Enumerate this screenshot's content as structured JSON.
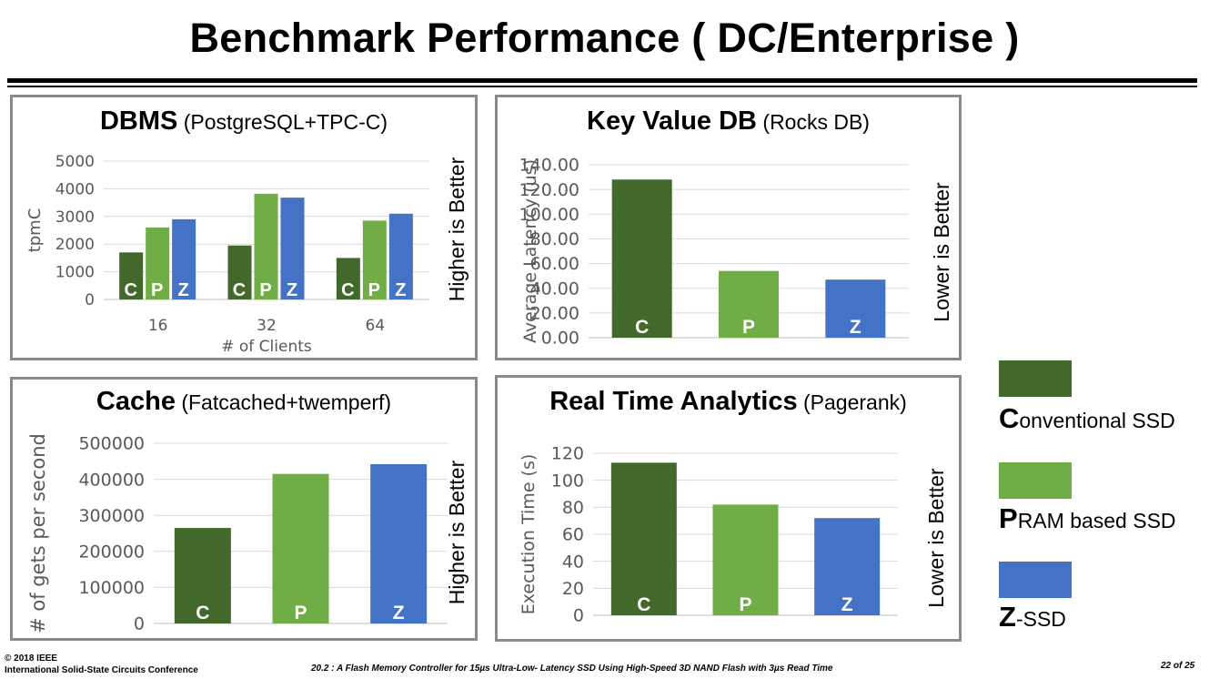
{
  "slide": {
    "title": "Benchmark Performance ( DC/Enterprise )",
    "footer_left_1": "© 2018 IEEE",
    "footer_left_2": "International Solid-State Circuits Conference",
    "footer_center": "20.2 : A Flash Memory Controller for 15µs Ultra-Low- Latency SSD Using High-Speed 3D NAND Flash with 3µs Read Time",
    "footer_right": "22 of 25"
  },
  "colors": {
    "C": "#43682B",
    "P": "#70AD47",
    "Z": "#4472C4"
  },
  "legend": [
    {
      "letter": "C",
      "rest": "onventional SSD",
      "color": "#43682B"
    },
    {
      "letter": "P",
      "rest": "RAM based SSD",
      "color": "#70AD47"
    },
    {
      "letter": "Z",
      "rest": "-SSD",
      "color": "#4472C4"
    }
  ],
  "panels": {
    "dbms": {
      "title_main": "DBMS",
      "title_sub": "(PostgreSQL+TPC-C)"
    },
    "kv": {
      "title_main": "Key Value DB",
      "title_sub": "(Rocks DB)"
    },
    "cache": {
      "title_main": "Cache",
      "title_sub": "(Fatcached+twemperf)"
    },
    "rta": {
      "title_main": "Real Time Analytics",
      "title_sub": "(Pagerank)"
    }
  },
  "chart_data": [
    {
      "id": "dbms",
      "type": "bar",
      "categories": [
        "16",
        "32",
        "64"
      ],
      "series": [
        {
          "name": "C",
          "values": [
            1700,
            1950,
            1500
          ]
        },
        {
          "name": "P",
          "values": [
            2600,
            3820,
            2850
          ]
        },
        {
          "name": "Z",
          "values": [
            2900,
            3680,
            3100
          ]
        }
      ],
      "ylim": [
        0,
        5000
      ],
      "yticks": [
        "0",
        "1000",
        "2000",
        "3000",
        "4000",
        "5000"
      ],
      "xlabel": "# of Clients",
      "ylabel": "tpmC",
      "note": "Higher is Better",
      "grid": true
    },
    {
      "id": "kv",
      "type": "bar",
      "categories": [
        "C",
        "P",
        "Z"
      ],
      "values": [
        128,
        54,
        47
      ],
      "ylim": [
        0,
        140
      ],
      "yticks": [
        "0.00",
        "20.00",
        "40.00",
        "60.00",
        "80.00",
        "100.00",
        "120.00",
        "140.00"
      ],
      "xlabel": "",
      "ylabel": "Average Latency (us)",
      "note": "Lower is Better",
      "grid": true
    },
    {
      "id": "cache",
      "type": "bar",
      "categories": [
        "C",
        "P",
        "Z"
      ],
      "values": [
        265000,
        415000,
        442000
      ],
      "ylim": [
        0,
        500000
      ],
      "yticks": [
        "0",
        "100000",
        "200000",
        "300000",
        "400000",
        "500000"
      ],
      "xlabel": "",
      "ylabel": "# of gets per second",
      "note": "Higher is Better",
      "grid": true
    },
    {
      "id": "rta",
      "type": "bar",
      "categories": [
        "C",
        "P",
        "Z"
      ],
      "values": [
        113,
        82,
        72
      ],
      "ylim": [
        0,
        120
      ],
      "yticks": [
        "0",
        "20",
        "40",
        "60",
        "80",
        "100",
        "120"
      ],
      "xlabel": "",
      "ylabel": "Execution Time (s)",
      "note": "Lower is Better",
      "grid": true
    }
  ]
}
